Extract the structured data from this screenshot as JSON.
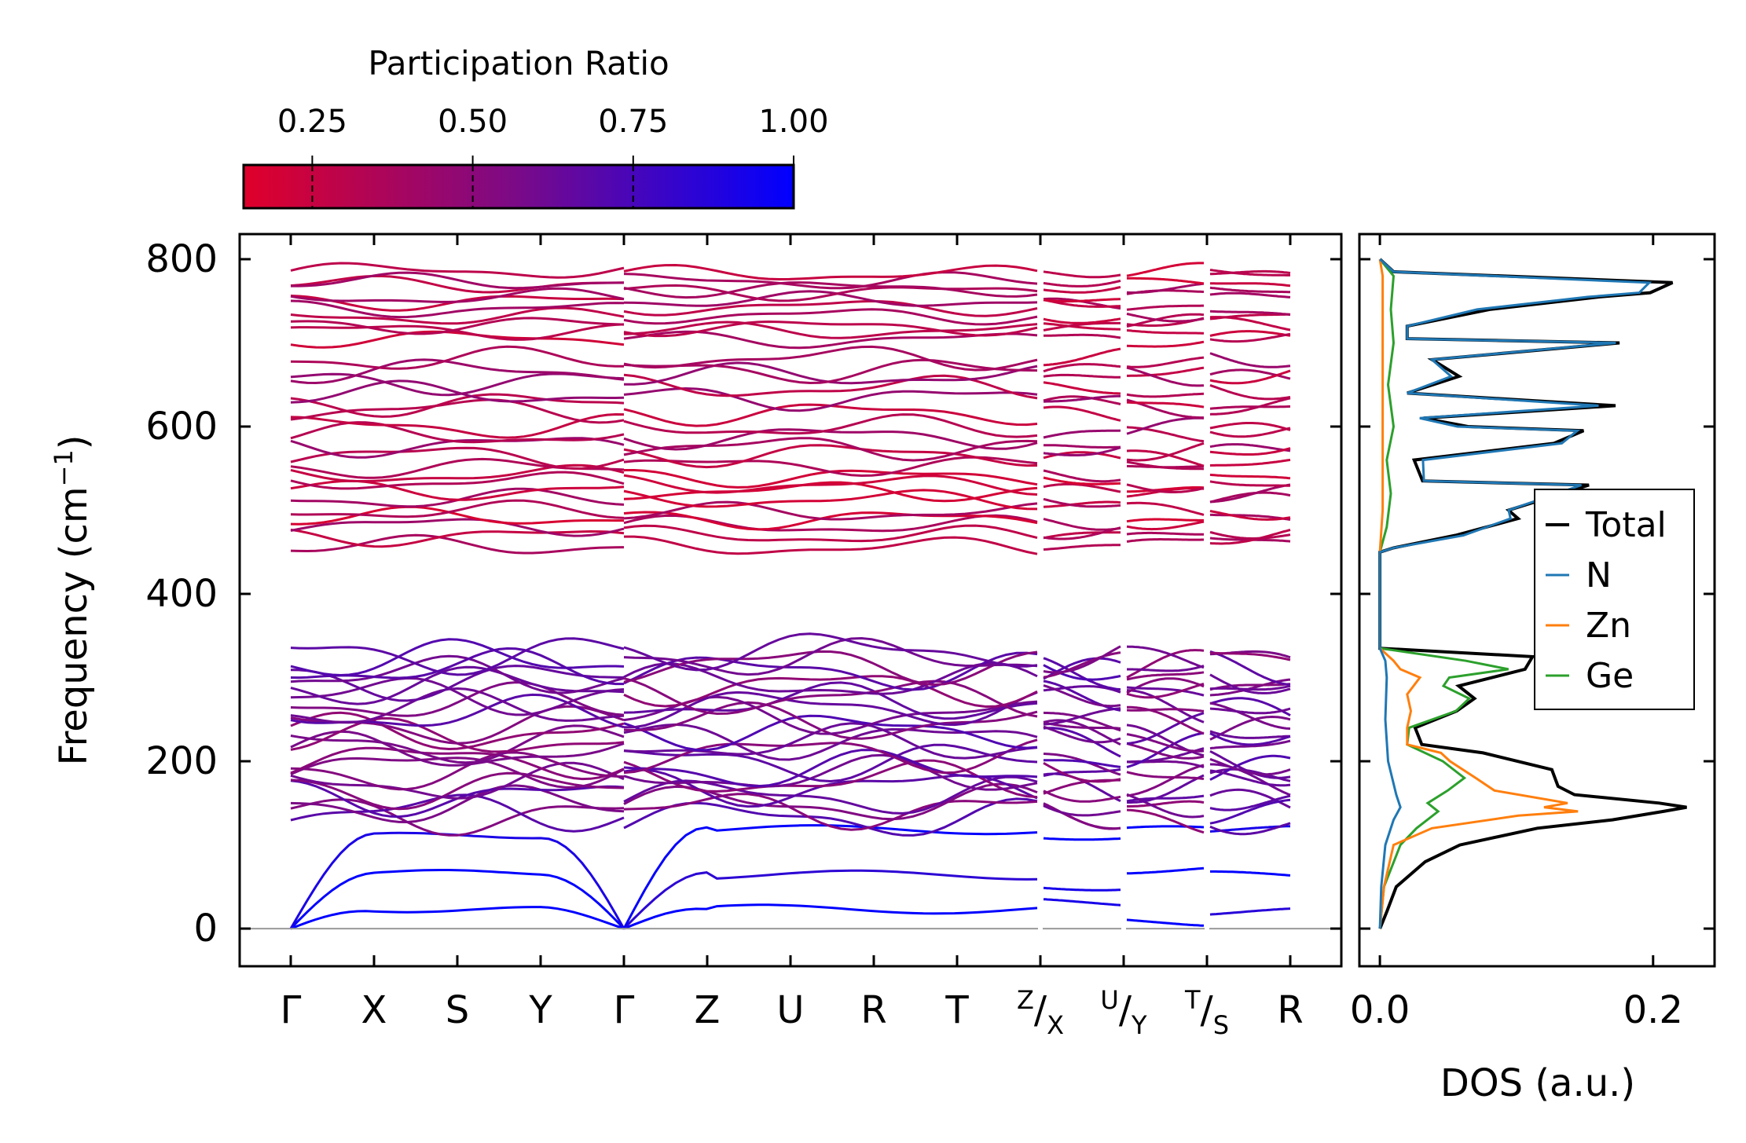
{
  "chart_data": [
    {
      "type": "line",
      "name": "phonon-band-structure",
      "ylabel": "Frequency (cm",
      "ylabel_sup": "−1",
      "ylabel_end": ")",
      "ylim": [
        -45,
        830
      ],
      "yticks": [
        0,
        200,
        400,
        600,
        800
      ],
      "path_points": [
        {
          "main": "Γ",
          "sup": "",
          "sub": "",
          "x": 0
        },
        {
          "main": "X",
          "sup": "",
          "sub": "",
          "x": 1
        },
        {
          "main": "S",
          "sup": "",
          "sub": "",
          "x": 2
        },
        {
          "main": "Y",
          "sup": "",
          "sub": "",
          "x": 3
        },
        {
          "main": "Γ",
          "sup": "",
          "sub": "",
          "x": 4
        },
        {
          "main": "Z",
          "sup": "",
          "sub": "",
          "x": 5
        },
        {
          "main": "U",
          "sup": "",
          "sub": "",
          "x": 6
        },
        {
          "main": "R",
          "sup": "",
          "sub": "",
          "x": 7
        },
        {
          "main": "T",
          "sup": "",
          "sub": "",
          "x": 8
        },
        {
          "main": "/",
          "sup": "Z",
          "sub": "X",
          "x": 9
        },
        {
          "main": "/",
          "sup": "U",
          "sub": "Y",
          "x": 10
        },
        {
          "main": "/",
          "sup": "T",
          "sub": "S",
          "x": 11
        },
        {
          "main": "R",
          "sup": "",
          "sub": "",
          "x": 12
        }
      ],
      "segment_breaks": [
        4,
        9,
        10,
        11
      ],
      "band_groups": [
        {
          "range": [
            0,
            130
          ],
          "participation": 0.95
        },
        {
          "range": [
            130,
            335
          ],
          "participation": 0.6
        },
        {
          "range": [
            455,
            560
          ],
          "participation": 0.3
        },
        {
          "range": [
            560,
            690
          ],
          "participation": 0.35
        },
        {
          "range": [
            700,
            790
          ],
          "participation": 0.3
        }
      ],
      "colorbar": {
        "label": "Participation Ratio",
        "ticks": [
          0.25,
          0.5,
          0.75,
          1.0
        ],
        "tick_labels": [
          "0.25",
          "0.50",
          "0.75",
          "1.00"
        ],
        "range": [
          0.143,
          1.0
        ],
        "color_low": "#e0002a",
        "color_mid": "#7a0a88",
        "color_high": "#0000ff"
      }
    },
    {
      "type": "line",
      "name": "phonon-dos",
      "xlabel": "DOS (a.u.)",
      "xticks": [
        0.0,
        0.2
      ],
      "xtick_labels": [
        "0.0",
        "0.2"
      ],
      "xlim": [
        -0.015,
        0.245
      ],
      "ylim": [
        -45,
        830
      ],
      "series": [
        {
          "name": "Total",
          "color": "#000000",
          "f": [
            0,
            20,
            50,
            80,
            100,
            120,
            130,
            140,
            145,
            150,
            160,
            170,
            190,
            210,
            220,
            240,
            260,
            275,
            290,
            310,
            325,
            335,
            340,
            450,
            455,
            470,
            490,
            500,
            530,
            535,
            560,
            580,
            595,
            600,
            610,
            625,
            640,
            660,
            680,
            700,
            705,
            720,
            740,
            755,
            760,
            772,
            785,
            800
          ],
          "d": [
            0.0,
            0.005,
            0.012,
            0.03,
            0.06,
            0.12,
            0.17,
            0.21,
            0.22,
            0.2,
            0.14,
            0.13,
            0.13,
            0.08,
            0.035,
            0.03,
            0.06,
            0.07,
            0.055,
            0.11,
            0.11,
            0.0,
            0.0,
            0.0,
            0.01,
            0.06,
            0.1,
            0.09,
            0.15,
            0.03,
            0.03,
            0.13,
            0.15,
            0.06,
            0.03,
            0.17,
            0.02,
            0.06,
            0.04,
            0.18,
            0.02,
            0.02,
            0.08,
            0.16,
            0.2,
            0.21,
            0.01,
            0.0
          ]
        },
        {
          "name": "N",
          "color": "#1f77b4",
          "f": [
            0,
            50,
            100,
            130,
            145,
            160,
            200,
            250,
            300,
            320,
            335,
            340,
            450,
            455,
            470,
            490,
            500,
            530,
            535,
            560,
            580,
            595,
            600,
            610,
            625,
            640,
            660,
            680,
            700,
            705,
            720,
            740,
            755,
            760,
            772,
            785,
            800
          ],
          "d": [
            0.0,
            0.001,
            0.004,
            0.01,
            0.015,
            0.012,
            0.006,
            0.004,
            0.005,
            0.004,
            0.0,
            0.0,
            0.0,
            0.01,
            0.06,
            0.1,
            0.09,
            0.15,
            0.03,
            0.03,
            0.13,
            0.14,
            0.06,
            0.03,
            0.16,
            0.02,
            0.05,
            0.04,
            0.17,
            0.02,
            0.02,
            0.07,
            0.15,
            0.19,
            0.2,
            0.01,
            0.0
          ]
        },
        {
          "name": "Zn",
          "color": "#ff7f0e",
          "f": [
            0,
            50,
            100,
            120,
            135,
            140,
            145,
            150,
            165,
            180,
            200,
            210,
            220,
            240,
            260,
            280,
            300,
            310,
            320,
            335,
            340,
            450,
            500,
            600,
            700,
            780,
            800
          ],
          "d": [
            0.0,
            0.003,
            0.01,
            0.04,
            0.1,
            0.15,
            0.12,
            0.14,
            0.08,
            0.075,
            0.05,
            0.04,
            0.02,
            0.02,
            0.025,
            0.02,
            0.03,
            0.015,
            0.01,
            0.0,
            0.0,
            0.0,
            0.002,
            0.002,
            0.002,
            0.002,
            0.0
          ]
        },
        {
          "name": "Ge",
          "color": "#2ca02c",
          "f": [
            0,
            50,
            100,
            120,
            140,
            150,
            165,
            180,
            200,
            220,
            240,
            260,
            275,
            290,
            300,
            310,
            320,
            335,
            340,
            450,
            480,
            520,
            560,
            600,
            650,
            700,
            740,
            780,
            800
          ],
          "d": [
            0.0,
            0.003,
            0.015,
            0.03,
            0.045,
            0.035,
            0.05,
            0.06,
            0.05,
            0.02,
            0.025,
            0.055,
            0.065,
            0.045,
            0.055,
            0.09,
            0.06,
            0.0,
            0.0,
            0.0,
            0.005,
            0.008,
            0.005,
            0.01,
            0.006,
            0.01,
            0.008,
            0.01,
            0.0
          ]
        }
      ],
      "legend": {
        "placement": "center-right",
        "entries": [
          "Total",
          "N",
          "Zn",
          "Ge"
        ]
      }
    }
  ]
}
